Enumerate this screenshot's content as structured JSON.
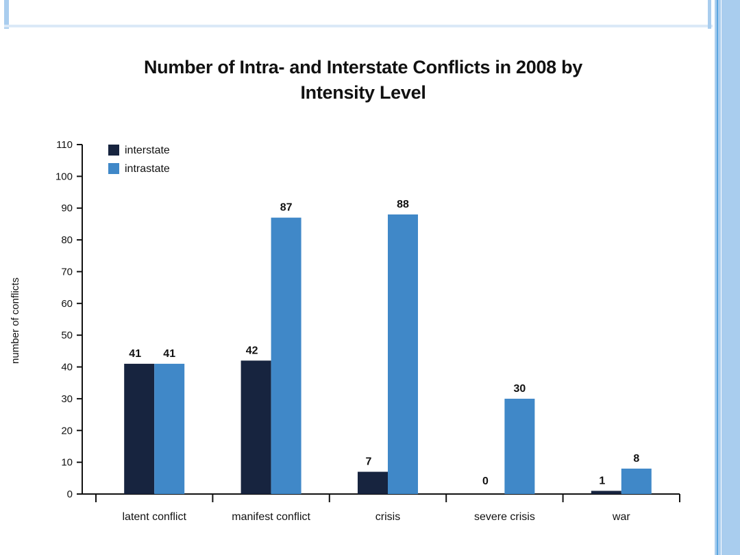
{
  "colors": {
    "interstate": "#17243f",
    "intrastate": "#4088c8",
    "axis": "#111111",
    "text": "#111111"
  },
  "chart_data": {
    "type": "bar",
    "title_line1": "Number of Intra- and Interstate Conflicts in 2008 by",
    "title_line2": "Intensity Level",
    "xlabel": "",
    "ylabel": "number of conflicts",
    "ylim": [
      0,
      110
    ],
    "yticks": [
      0,
      10,
      20,
      30,
      40,
      50,
      60,
      70,
      80,
      90,
      100,
      110
    ],
    "categories": [
      "latent conflict",
      "manifest conflict",
      "crisis",
      "severe crisis",
      "war"
    ],
    "series": [
      {
        "name": "interstate",
        "values": [
          41,
          42,
          7,
          0,
          1
        ]
      },
      {
        "name": "intrastate",
        "values": [
          41,
          87,
          88,
          30,
          8
        ]
      }
    ],
    "legend": [
      "interstate",
      "intrastate"
    ],
    "legend_position": "top-left",
    "grid": false
  }
}
